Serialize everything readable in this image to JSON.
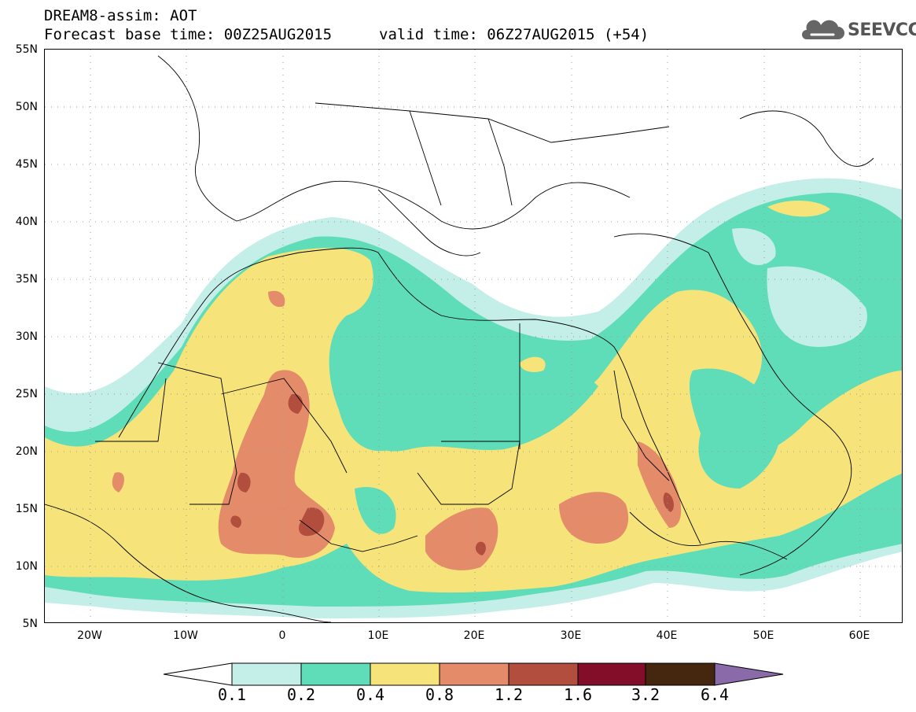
{
  "header": {
    "line1": "DREAM8-assim: AOT",
    "line2": "Forecast base time: 00Z25AUG2015",
    "line3": "valid time: 06Z27AUG2015 (+54)",
    "logo_text": "SEEVCCC"
  },
  "map": {
    "lat_labels": [
      "55N",
      "50N",
      "45N",
      "40N",
      "35N",
      "30N",
      "25N",
      "20N",
      "15N",
      "10N",
      "5N"
    ],
    "lon_labels": [
      "20W",
      "10W",
      "0",
      "10E",
      "20E",
      "30E",
      "40E",
      "50E",
      "60E"
    ],
    "colors": {
      "c01": "#c4eee8",
      "c02": "#5fdcb8",
      "c04": "#f6e37a",
      "c08": "#e48b6a",
      "c12": "#b24e3e",
      "c16": "#820e2a",
      "c32": "#45260f",
      "c64": "#8a6aa8"
    }
  },
  "colorbar": {
    "labels": [
      "0.1",
      "0.2",
      "0.4",
      "0.8",
      "1.2",
      "1.6",
      "3.2",
      "6.4"
    ]
  }
}
